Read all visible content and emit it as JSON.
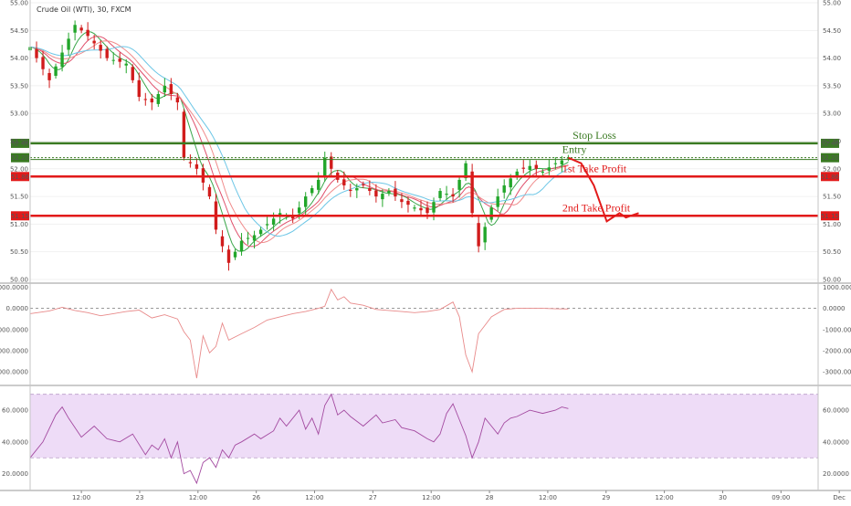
{
  "header": {
    "symbol": "Crude Oil (WTI), 30, FXCM"
  },
  "chart_data": [
    {
      "type": "candlestick",
      "title": "Crude Oil (WTI), 30, FXCM",
      "ylim": [
        49.95,
        55.05
      ],
      "y_ticks": [
        "50.00",
        "50.50",
        "51.00",
        "51.50",
        "52.00",
        "52.50",
        "53.00",
        "53.50",
        "54.00",
        "54.50",
        "55.00"
      ],
      "x_ticks": [
        "12:00",
        "23",
        "12:00",
        "26",
        "12:00",
        "27",
        "12:00",
        "28",
        "12:00",
        "29",
        "12:00",
        "30",
        "09:00",
        "Dec"
      ],
      "series_colors": {
        "up": "#22a62a",
        "down": "#d11c1c",
        "ma_fast": "#3aa64a",
        "ma_mid": "#e0506c",
        "ma_slow": "#f08c8c",
        "ma_long": "#6cc6e6"
      },
      "close_path": [
        [
          0,
          54.2
        ],
        [
          3,
          53.6
        ],
        [
          5,
          54.1
        ],
        [
          7,
          54.6
        ],
        [
          9,
          54.4
        ],
        [
          12,
          54.0
        ],
        [
          15,
          53.9
        ],
        [
          17,
          53.3
        ],
        [
          19,
          53.2
        ],
        [
          21,
          53.5
        ],
        [
          23,
          53.2
        ],
        [
          24,
          52.2
        ],
        [
          26,
          52.0
        ],
        [
          28,
          51.5
        ],
        [
          29,
          50.9
        ],
        [
          31,
          50.3
        ],
        [
          33,
          50.7
        ],
        [
          35,
          50.8
        ],
        [
          37,
          51.0
        ],
        [
          39,
          51.2
        ],
        [
          41,
          51.1
        ],
        [
          43,
          51.5
        ],
        [
          45,
          51.8
        ],
        [
          46,
          52.2
        ],
        [
          48,
          51.8
        ],
        [
          50,
          51.6
        ],
        [
          52,
          51.7
        ],
        [
          54,
          51.5
        ],
        [
          56,
          51.6
        ],
        [
          58,
          51.4
        ],
        [
          60,
          51.3
        ],
        [
          62,
          51.2
        ],
        [
          64,
          51.6
        ],
        [
          66,
          51.5
        ],
        [
          68,
          52.1
        ],
        [
          69,
          51.2
        ],
        [
          70,
          50.6
        ],
        [
          72,
          51.3
        ],
        [
          74,
          51.7
        ],
        [
          76,
          51.95
        ],
        [
          78,
          52.05
        ],
        [
          80,
          51.95
        ],
        [
          82,
          52.1
        ],
        [
          84,
          52.2
        ]
      ],
      "levels": [
        {
          "name": "Stop Loss",
          "value": "52.46",
          "color": "#3a7a22"
        },
        {
          "name": "Entry",
          "value": "52.20",
          "color": "#3a7a22"
        },
        {
          "name": "1st Take Profit",
          "value": "51.86",
          "color": "#e21a1a"
        },
        {
          "name": "2nd Take Profit",
          "value": "51.15",
          "color": "#e21a1a"
        }
      ],
      "projection": [
        [
          84,
          52.2
        ],
        [
          86,
          52.1
        ],
        [
          88,
          51.7
        ],
        [
          90,
          51.05
        ],
        [
          92,
          51.2
        ],
        [
          93,
          51.12
        ],
        [
          95,
          51.2
        ]
      ]
    },
    {
      "type": "line",
      "ylim": [
        -3600,
        1150
      ],
      "y_ticks": [
        "1000.0000",
        "0.0000",
        "-1000.0000",
        "-2000.0000",
        "-3000.0000"
      ],
      "line_color": "#e88a8a",
      "points": [
        [
          0,
          -250
        ],
        [
          3,
          -120
        ],
        [
          5,
          50
        ],
        [
          7,
          -100
        ],
        [
          9,
          -200
        ],
        [
          11,
          -350
        ],
        [
          13,
          -250
        ],
        [
          15,
          -150
        ],
        [
          17,
          -80
        ],
        [
          19,
          -450
        ],
        [
          21,
          -300
        ],
        [
          23,
          -500
        ],
        [
          24,
          -1100
        ],
        [
          25,
          -1500
        ],
        [
          26,
          -3300
        ],
        [
          27,
          -1300
        ],
        [
          28,
          -2100
        ],
        [
          29,
          -1800
        ],
        [
          30,
          -700
        ],
        [
          31,
          -1500
        ],
        [
          33,
          -1200
        ],
        [
          35,
          -900
        ],
        [
          37,
          -550
        ],
        [
          39,
          -400
        ],
        [
          41,
          -250
        ],
        [
          43,
          -150
        ],
        [
          45,
          0
        ],
        [
          46,
          100
        ],
        [
          47,
          900
        ],
        [
          48,
          400
        ],
        [
          49,
          550
        ],
        [
          50,
          250
        ],
        [
          52,
          150
        ],
        [
          54,
          -50
        ],
        [
          56,
          -100
        ],
        [
          58,
          -150
        ],
        [
          60,
          -200
        ],
        [
          62,
          -150
        ],
        [
          64,
          -50
        ],
        [
          66,
          300
        ],
        [
          67,
          -400
        ],
        [
          68,
          -2200
        ],
        [
          69,
          -3000
        ],
        [
          70,
          -1200
        ],
        [
          72,
          -400
        ],
        [
          74,
          -50
        ],
        [
          76,
          0
        ],
        [
          78,
          0
        ],
        [
          80,
          0
        ],
        [
          82,
          -20
        ],
        [
          84,
          -30
        ]
      ]
    },
    {
      "type": "line",
      "ylim": [
        10,
        75
      ],
      "y_ticks": [
        "60.0000",
        "40.0000",
        "20.0000"
      ],
      "band": [
        30,
        70
      ],
      "line_color": "#a34aa0",
      "band_color": "#eedcf7",
      "points": [
        [
          0,
          30
        ],
        [
          2,
          40
        ],
        [
          4,
          57
        ],
        [
          5,
          62
        ],
        [
          6,
          55
        ],
        [
          8,
          43
        ],
        [
          10,
          50
        ],
        [
          12,
          42
        ],
        [
          14,
          40
        ],
        [
          16,
          45
        ],
        [
          18,
          32
        ],
        [
          19,
          38
        ],
        [
          20,
          35
        ],
        [
          21,
          42
        ],
        [
          22,
          30
        ],
        [
          23,
          40
        ],
        [
          24,
          20
        ],
        [
          25,
          22
        ],
        [
          26,
          14
        ],
        [
          27,
          27
        ],
        [
          28,
          30
        ],
        [
          29,
          24
        ],
        [
          30,
          35
        ],
        [
          31,
          30
        ],
        [
          32,
          38
        ],
        [
          33,
          40
        ],
        [
          35,
          45
        ],
        [
          36,
          42
        ],
        [
          38,
          47
        ],
        [
          39,
          55
        ],
        [
          40,
          50
        ],
        [
          42,
          60
        ],
        [
          43,
          48
        ],
        [
          44,
          55
        ],
        [
          45,
          45
        ],
        [
          46,
          63
        ],
        [
          47,
          70
        ],
        [
          48,
          57
        ],
        [
          49,
          60
        ],
        [
          50,
          56
        ],
        [
          52,
          50
        ],
        [
          54,
          57
        ],
        [
          55,
          52
        ],
        [
          57,
          54
        ],
        [
          58,
          49
        ],
        [
          60,
          47
        ],
        [
          62,
          42
        ],
        [
          63,
          40
        ],
        [
          64,
          45
        ],
        [
          65,
          58
        ],
        [
          66,
          64
        ],
        [
          67,
          54
        ],
        [
          68,
          44
        ],
        [
          69,
          30
        ],
        [
          70,
          40
        ],
        [
          71,
          55
        ],
        [
          72,
          50
        ],
        [
          73,
          45
        ],
        [
          74,
          52
        ],
        [
          75,
          55
        ],
        [
          76,
          56
        ],
        [
          78,
          60
        ],
        [
          80,
          58
        ],
        [
          82,
          60
        ],
        [
          83,
          62
        ],
        [
          84,
          61
        ]
      ]
    }
  ]
}
